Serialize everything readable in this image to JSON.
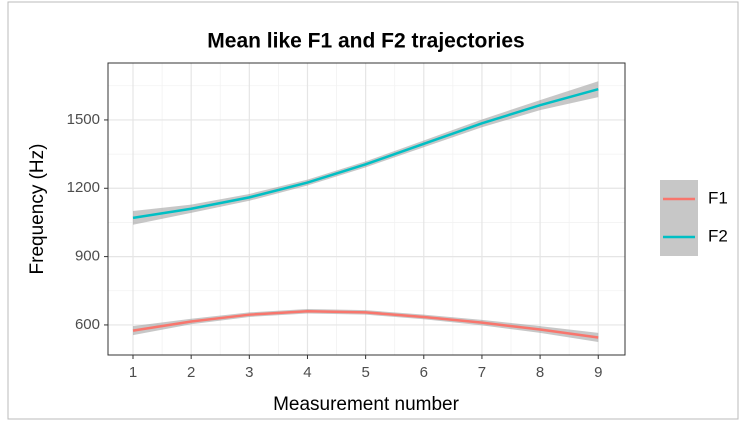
{
  "chart_data": {
    "type": "line",
    "title": "Mean like F1 and F2 trajectories",
    "x_label": "Measurement number",
    "y_label": "Frequency (Hz)",
    "x": [
      1,
      2,
      3,
      4,
      5,
      6,
      7,
      8,
      9
    ],
    "series": [
      {
        "name": "F1",
        "color": "#F8766D",
        "values": [
          575,
          615,
          645,
          660,
          655,
          635,
          610,
          580,
          545
        ],
        "lower": [
          555,
          603,
          635,
          650,
          645,
          625,
          598,
          565,
          525
        ],
        "upper": [
          595,
          627,
          655,
          670,
          665,
          645,
          622,
          595,
          565
        ]
      },
      {
        "name": "F2",
        "color": "#00BFC4",
        "values": [
          1070,
          1110,
          1160,
          1225,
          1305,
          1395,
          1485,
          1565,
          1635
        ],
        "lower": [
          1040,
          1092,
          1145,
          1212,
          1292,
          1380,
          1468,
          1543,
          1600
        ],
        "upper": [
          1100,
          1128,
          1175,
          1238,
          1318,
          1410,
          1502,
          1587,
          1670
        ]
      }
    ],
    "xlim": [
      0.57,
      9.46
    ],
    "ylim": [
      468,
      1750
    ],
    "xticks": [
      1,
      2,
      3,
      4,
      5,
      6,
      7,
      8,
      9
    ],
    "yticks": [
      600,
      900,
      1200,
      1500
    ],
    "x_minor_ticks": [
      1.5,
      2.5,
      3.5,
      4.5,
      5.5,
      6.5,
      7.5,
      8.5
    ],
    "y_minor_ticks": [
      750,
      1050,
      1350,
      1650
    ],
    "grid": true,
    "band_color": "#999999"
  }
}
